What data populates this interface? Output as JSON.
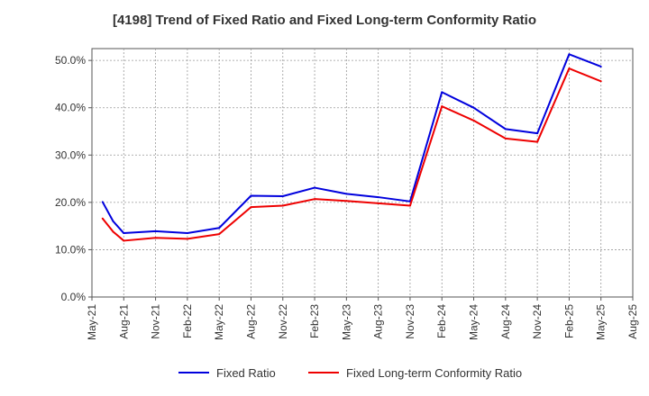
{
  "chart_data": {
    "type": "line",
    "title": "[4198]  Trend of Fixed Ratio and Fixed Long-term Conformity Ratio",
    "xlabel": "",
    "ylabel": "",
    "x_ticks": [
      "May-21",
      "Aug-21",
      "Nov-21",
      "Feb-22",
      "May-22",
      "Aug-22",
      "Nov-22",
      "Feb-23",
      "May-23",
      "Aug-23",
      "Nov-23",
      "Feb-24",
      "May-24",
      "Aug-24",
      "Nov-24",
      "Feb-25",
      "May-25",
      "Aug-25"
    ],
    "y_ticks": [
      "0.0%",
      "10.0%",
      "20.0%",
      "30.0%",
      "40.0%",
      "50.0%"
    ],
    "ylim": [
      0,
      52.5
    ],
    "grid": true,
    "legend_position": "bottom",
    "x": [
      "2021-06",
      "2021-07",
      "2021-08",
      "2021-11",
      "2022-02",
      "2022-05",
      "2022-08",
      "2022-11",
      "2023-02",
      "2023-05",
      "2023-08",
      "2023-11",
      "2024-02",
      "2024-05",
      "2024-08",
      "2024-11",
      "2025-02",
      "2025-05"
    ],
    "series": [
      {
        "name": "Fixed Ratio",
        "color": "#0000dd",
        "values": [
          20.1,
          16.0,
          13.5,
          13.9,
          13.5,
          14.6,
          21.4,
          21.3,
          23.1,
          21.8,
          21.1,
          20.2,
          43.3,
          40.0,
          35.5,
          34.6,
          51.3,
          48.7
        ]
      },
      {
        "name": "Fixed Long-term Conformity Ratio",
        "color": "#ee0000",
        "values": [
          16.6,
          13.8,
          11.9,
          12.5,
          12.3,
          13.3,
          19.0,
          19.3,
          20.7,
          20.3,
          19.8,
          19.3,
          40.3,
          37.3,
          33.5,
          32.8,
          48.3,
          45.6
        ]
      }
    ]
  }
}
